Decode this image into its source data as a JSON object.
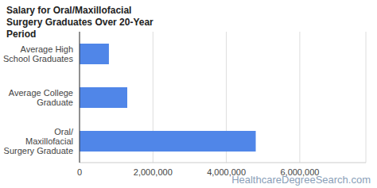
{
  "chart_data": {
    "type": "bar",
    "title": "Salary for Oral/Maxillofacial Surgery Graduates Over 20-Year Period",
    "orientation": "horizontal",
    "categories": [
      "Average High School Graduates",
      "Average College Graduate",
      "Oral/ Maxillofacial Surgery Graduate"
    ],
    "values": [
      800000,
      1300000,
      4800000
    ],
    "color": "#5086e8",
    "xlim": [
      0,
      7800000
    ],
    "xticks": [
      0,
      {
        "value": 2000000,
        "label": "2,000,000"
      },
      {
        "value": 4000000,
        "label": "4,000,000"
      },
      {
        "value": 6000000,
        "label": "6,000,000"
      }
    ],
    "grid": true,
    "annotations": [
      "HealthcareDegreeSearch.com"
    ]
  }
}
